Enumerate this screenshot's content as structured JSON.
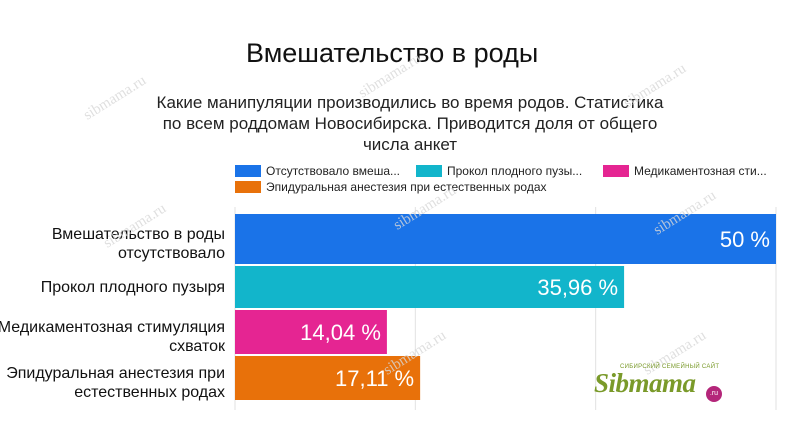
{
  "page_title": "Вмешательство в роды",
  "watermark_text": "sibmama.ru",
  "logo": {
    "main": "Sibmama",
    "sub": "СИБИРСКИЙ СЕМЕЙНЫЙ САЙТ",
    "suffix": ".ru"
  },
  "chart_data": {
    "type": "bar",
    "orientation": "horizontal",
    "title": "Какие манипуляции производились во время родов. Статистика по всем роддомам Новосибирска. Приводится доля от общего числа анкет",
    "categories": [
      "Вмешательство в роды отсутствовало",
      "Прокол плодного пузыря",
      "Медикаментозная стимуляция схваток",
      "Эпидуральная анестезия при естественных родах"
    ],
    "values": [
      50,
      35.96,
      14.04,
      17.11
    ],
    "value_labels": [
      "50 %",
      "35,96 %",
      "14,04 %",
      "17,11 %"
    ],
    "colors": [
      "#1a73e8",
      "#12b5cb",
      "#e52592",
      "#e8710a"
    ],
    "legend": [
      "Отсутствовало вмеша...",
      "Прокол плодного пузы...",
      "Медикаментозная сти...",
      "Эпидуральная анестезия при естественных родах"
    ],
    "legend_position": "top",
    "xlim": [
      0,
      50
    ],
    "grid": true
  }
}
